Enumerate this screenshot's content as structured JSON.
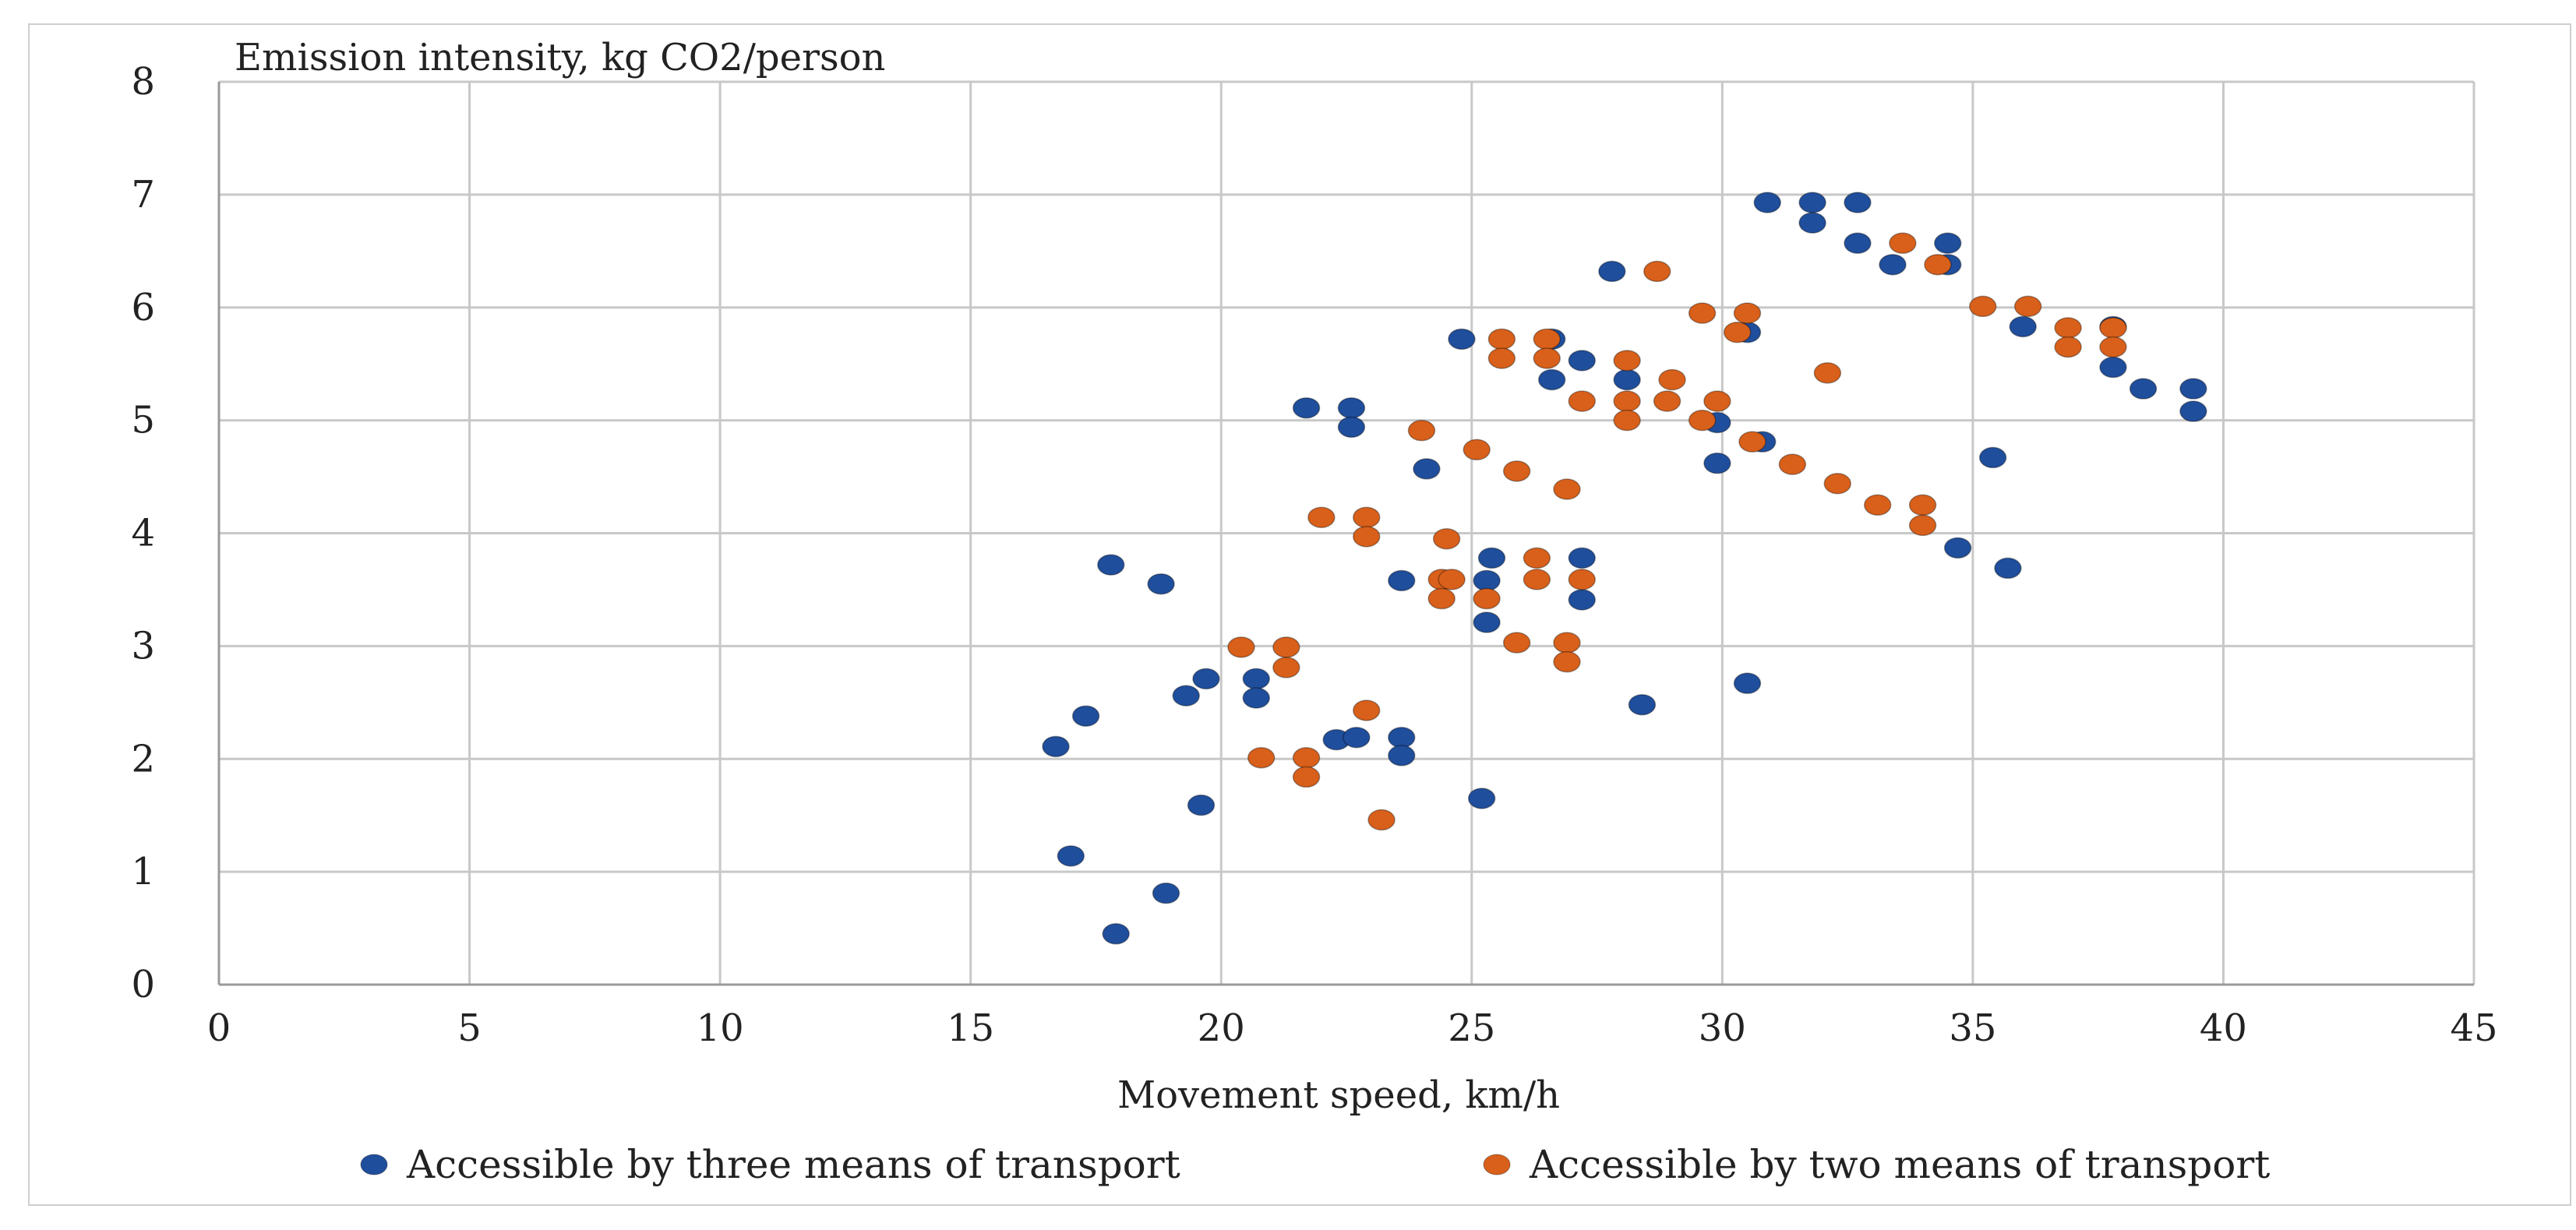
{
  "chart_data": {
    "type": "scatter",
    "ylabel": "Emission intensity, kg CO2/person",
    "xlabel": "Movement speed, km/h",
    "xlim": [
      0,
      45
    ],
    "ylim": [
      0,
      8
    ],
    "xticks": [
      "0",
      "5",
      "10",
      "15",
      "20",
      "25",
      "30",
      "35",
      "40",
      "45"
    ],
    "yticks": [
      "0",
      "1",
      "2",
      "3",
      "4",
      "5",
      "6",
      "7",
      "8"
    ],
    "grid": true,
    "legend_position": "bottom",
    "series": [
      {
        "name": "Accessible by three means of transport",
        "color": "#1f4e9c",
        "points": [
          [
            30.9,
            6.93
          ],
          [
            31.8,
            6.93
          ],
          [
            32.7,
            6.93
          ],
          [
            31.8,
            6.75
          ],
          [
            32.7,
            6.57
          ],
          [
            34.5,
            6.57
          ],
          [
            33.4,
            6.38
          ],
          [
            34.5,
            6.38
          ],
          [
            27.8,
            6.32
          ],
          [
            24.8,
            5.72
          ],
          [
            26.6,
            5.72
          ],
          [
            30.5,
            5.78
          ],
          [
            36.0,
            5.83
          ],
          [
            37.8,
            5.83
          ],
          [
            27.2,
            5.53
          ],
          [
            26.6,
            5.36
          ],
          [
            28.1,
            5.36
          ],
          [
            37.8,
            5.47
          ],
          [
            38.4,
            5.28
          ],
          [
            39.4,
            5.28
          ],
          [
            39.4,
            5.08
          ],
          [
            21.7,
            5.11
          ],
          [
            22.6,
            5.11
          ],
          [
            22.6,
            4.94
          ],
          [
            29.9,
            4.98
          ],
          [
            30.8,
            4.81
          ],
          [
            24.1,
            4.57
          ],
          [
            29.9,
            4.62
          ],
          [
            35.4,
            4.67
          ],
          [
            34.7,
            3.87
          ],
          [
            35.7,
            3.69
          ],
          [
            25.4,
            3.78
          ],
          [
            27.2,
            3.78
          ],
          [
            23.6,
            3.58
          ],
          [
            25.3,
            3.58
          ],
          [
            27.2,
            3.41
          ],
          [
            25.3,
            3.21
          ],
          [
            17.8,
            3.72
          ],
          [
            18.8,
            3.55
          ],
          [
            19.7,
            2.71
          ],
          [
            20.7,
            2.71
          ],
          [
            19.3,
            2.56
          ],
          [
            20.7,
            2.54
          ],
          [
            17.3,
            2.38
          ],
          [
            16.7,
            2.11
          ],
          [
            22.3,
            2.17
          ],
          [
            22.7,
            2.19
          ],
          [
            23.6,
            2.19
          ],
          [
            23.6,
            2.03
          ],
          [
            28.4,
            2.48
          ],
          [
            30.5,
            2.67
          ],
          [
            19.6,
            1.59
          ],
          [
            25.2,
            1.65
          ],
          [
            17.0,
            1.14
          ],
          [
            18.9,
            0.81
          ],
          [
            17.9,
            0.45
          ]
        ]
      },
      {
        "name": "Accessible by two means of transport",
        "color": "#d9601a",
        "points": [
          [
            33.6,
            6.57
          ],
          [
            34.3,
            6.38
          ],
          [
            28.7,
            6.32
          ],
          [
            29.6,
            5.95
          ],
          [
            30.5,
            5.95
          ],
          [
            35.2,
            6.01
          ],
          [
            36.1,
            6.01
          ],
          [
            30.3,
            5.78
          ],
          [
            36.9,
            5.82
          ],
          [
            37.8,
            5.82
          ],
          [
            36.9,
            5.65
          ],
          [
            37.8,
            5.65
          ],
          [
            25.6,
            5.72
          ],
          [
            26.5,
            5.72
          ],
          [
            25.6,
            5.55
          ],
          [
            26.5,
            5.55
          ],
          [
            28.1,
            5.53
          ],
          [
            32.1,
            5.42
          ],
          [
            29.0,
            5.36
          ],
          [
            27.2,
            5.17
          ],
          [
            28.1,
            5.17
          ],
          [
            28.9,
            5.17
          ],
          [
            29.9,
            5.17
          ],
          [
            28.1,
            5.0
          ],
          [
            29.6,
            5.0
          ],
          [
            30.6,
            4.81
          ],
          [
            24.0,
            4.91
          ],
          [
            25.1,
            4.74
          ],
          [
            25.9,
            4.55
          ],
          [
            26.9,
            4.39
          ],
          [
            31.4,
            4.61
          ],
          [
            32.3,
            4.44
          ],
          [
            33.1,
            4.25
          ],
          [
            34.0,
            4.25
          ],
          [
            34.0,
            4.07
          ],
          [
            22.0,
            4.14
          ],
          [
            22.9,
            4.14
          ],
          [
            22.9,
            3.97
          ],
          [
            24.5,
            3.95
          ],
          [
            26.3,
            3.78
          ],
          [
            24.4,
            3.59
          ],
          [
            24.6,
            3.59
          ],
          [
            26.3,
            3.59
          ],
          [
            27.2,
            3.59
          ],
          [
            24.4,
            3.42
          ],
          [
            25.3,
            3.42
          ],
          [
            25.9,
            3.03
          ],
          [
            26.9,
            3.03
          ],
          [
            26.9,
            2.86
          ],
          [
            20.4,
            2.99
          ],
          [
            21.3,
            2.99
          ],
          [
            21.3,
            2.81
          ],
          [
            22.9,
            2.43
          ],
          [
            20.8,
            2.01
          ],
          [
            21.7,
            2.01
          ],
          [
            21.7,
            1.84
          ],
          [
            23.2,
            1.46
          ]
        ]
      }
    ]
  }
}
